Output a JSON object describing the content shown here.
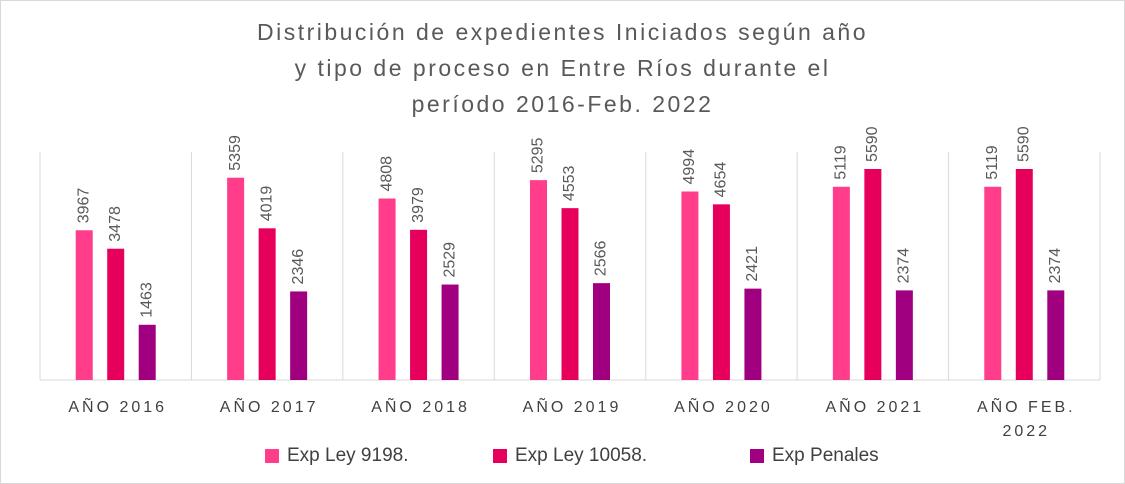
{
  "chart_data": {
    "type": "bar",
    "title": "Distribución de expedientes Iniciados según año y tipo de proceso en Entre Ríos durante el período 2016-Feb. 2022",
    "categories": [
      "AÑO 2016",
      "AÑO 2017",
      "AÑO 2018",
      "AÑO 2019",
      "AÑO 2020",
      "AÑO 2021",
      "AÑO FEB. 2022"
    ],
    "series": [
      {
        "name": "Exp Ley 9198.",
        "color": "#ff3d8b",
        "values": [
          3967,
          5359,
          4808,
          5295,
          4994,
          5119,
          5119
        ]
      },
      {
        "name": "Exp Ley 10058.",
        "color": "#e6005c",
        "values": [
          3478,
          4019,
          3979,
          4553,
          4654,
          5590,
          5590
        ]
      },
      {
        "name": "Exp Penales",
        "color": "#a0007f",
        "values": [
          1463,
          2346,
          2529,
          2566,
          2421,
          2374,
          2374
        ]
      }
    ]
  }
}
